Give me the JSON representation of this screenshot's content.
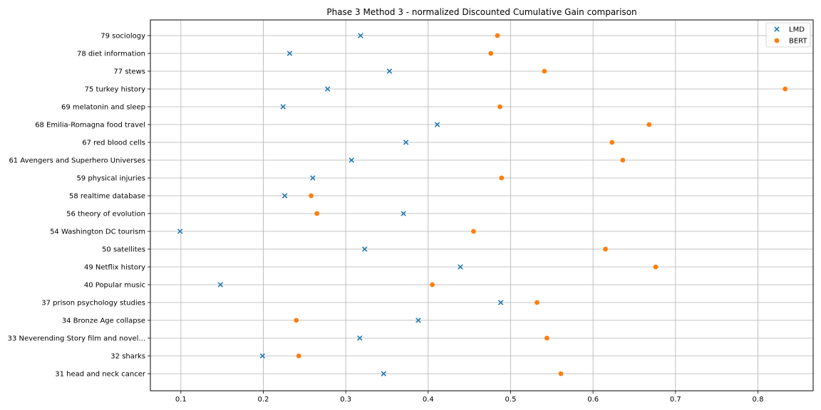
{
  "chart_data": {
    "type": "scatter",
    "title": "Phase 3 Method 3 - normalized Discounted Cumulative Gain comparison",
    "xlabel": "",
    "ylabel": "",
    "xlim": [
      0.063,
      0.867
    ],
    "xticks": [
      0.1,
      0.2,
      0.3,
      0.4,
      0.5,
      0.6,
      0.7,
      0.8
    ],
    "grid": true,
    "legend_position": "top-right",
    "categories": [
      "31 head and neck cancer",
      "32 sharks",
      "33 Neverending Story film and novel...",
      "34 Bronze Age collapse",
      "37 prison psychology studies",
      "40 Popular music",
      "49 Netflix history",
      "50 satellites",
      "54 Washington DC tourism",
      "56 theory of evolution",
      "58 realtime database",
      "59 physical injuries",
      "61 Avengers and Superhero Universes",
      "67 red blood cells",
      "68 Emilia-Romagna food travel",
      "69 melatonin and sleep",
      "75 turkey history",
      "77 stews",
      "78 diet information",
      "79 sociology"
    ],
    "series": [
      {
        "name": "LMD",
        "marker": "x",
        "color": "#1f77b4",
        "values": [
          0.346,
          0.199,
          0.317,
          0.388,
          0.488,
          0.148,
          0.439,
          0.323,
          0.099,
          0.37,
          0.226,
          0.26,
          0.307,
          0.373,
          0.411,
          0.224,
          0.278,
          0.353,
          0.232,
          0.318
        ]
      },
      {
        "name": "BERT",
        "marker": "o",
        "color": "#ff7f0e",
        "values": [
          0.561,
          0.243,
          0.544,
          0.24,
          0.532,
          0.405,
          0.676,
          0.615,
          0.455,
          0.265,
          0.258,
          0.489,
          0.636,
          0.623,
          0.668,
          0.487,
          0.833,
          0.541,
          0.476,
          0.484
        ]
      }
    ]
  }
}
